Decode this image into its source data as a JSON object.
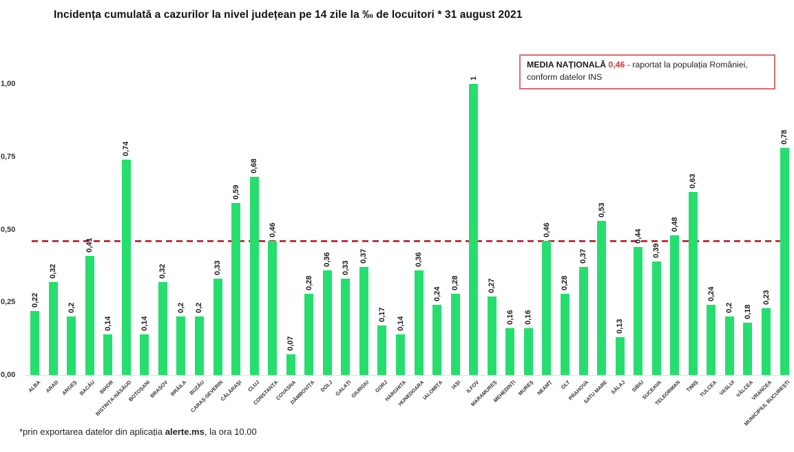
{
  "title": "Incidența cumulată a cazurilor la nivel județean pe 14 zile la ‰ de locuitori * 31 august 2021",
  "legend": {
    "label": "MEDIA NAȚIONALĂ",
    "value": "0,46",
    "text_after": "- raportat la populația României, conform datelor INS"
  },
  "footnote": {
    "prefix": "*prin exportarea datelor din aplicația ",
    "bold": "alerte.ms",
    "suffix": ", la ora 10.00"
  },
  "colors": {
    "bar": "#26de6e",
    "reference_line": "#c2313e",
    "legend_border": "#e06a6a",
    "legend_value": "#d93035",
    "text": "#1a1a1a"
  },
  "chart_data": {
    "type": "bar",
    "title": "Incidența cumulată a cazurilor la nivel județean pe 14 zile la ‰ de locuitori * 31 august 2021",
    "xlabel": "",
    "ylabel": "",
    "ylim": [
      0,
      1.05
    ],
    "grid": false,
    "legend_position": "top-right",
    "yticks": [
      {
        "label": "0,00",
        "value": 0.0
      },
      {
        "label": "0,25",
        "value": 0.25
      },
      {
        "label": "0,50",
        "value": 0.5
      },
      {
        "label": "0,75",
        "value": 0.75
      },
      {
        "label": "1,00",
        "value": 1.0
      }
    ],
    "reference_line": {
      "value": 0.46,
      "style": "dashed",
      "color": "#c2313e",
      "meaning": "media națională"
    },
    "categories": [
      "ALBA",
      "ARAD",
      "ARGEȘ",
      "BACĂU",
      "BIHOR",
      "BISTRIȚA-NĂSĂUD",
      "BOTOȘANI",
      "BRAȘOV",
      "BRĂILA",
      "BUZĂU",
      "CARAȘ-SEVERIN",
      "CĂLĂRAȘI",
      "CLUJ",
      "CONSTANȚA",
      "COVASNA",
      "DÂMBOVIȚA",
      "DOLJ",
      "GALAȚI",
      "GIURGIU",
      "GORJ",
      "HARGHITA",
      "HUNEDOARA",
      "IALOMIȚA",
      "IAȘI",
      "ILFOV",
      "MARAMUREȘ",
      "MEHEDINȚI",
      "MUREȘ",
      "NEAMȚ",
      "OLT",
      "PRAHOVA",
      "SATU MARE",
      "SĂLAJ",
      "SIBIU",
      "SUCEAVA",
      "TELEORMAN",
      "TIMIȘ",
      "TULCEA",
      "VASLUI",
      "VÂLCEA",
      "VRANCEA",
      "MUNICIPIUL BUCUREȘTI"
    ],
    "values": [
      0.22,
      0.32,
      0.2,
      0.41,
      0.14,
      0.74,
      0.14,
      0.32,
      0.2,
      0.2,
      0.33,
      0.59,
      0.68,
      0.46,
      0.07,
      0.28,
      0.36,
      0.33,
      0.37,
      0.17,
      0.14,
      0.36,
      0.24,
      0.28,
      1,
      0.27,
      0.16,
      0.16,
      0.46,
      0.28,
      0.37,
      0.53,
      0.13,
      0.44,
      0.39,
      0.48,
      0.63,
      0.24,
      0.2,
      0.18,
      0.23,
      0.78
    ],
    "value_labels": [
      "0,22",
      "0,32",
      "0,2",
      "0,41",
      "0,14",
      "0,74",
      "0,14",
      "0,32",
      "0,2",
      "0,2",
      "0,33",
      "0,59",
      "0,68",
      "0,46",
      "0,07",
      "0,28",
      "0,36",
      "0,33",
      "0,37",
      "0,17",
      "0,14",
      "0,36",
      "0,24",
      "0,28",
      "1",
      "0,27",
      "0,16",
      "0,16",
      "0,46",
      "0,28",
      "0,37",
      "0,53",
      "0,13",
      "0,44",
      "0,39",
      "0,48",
      "0,63",
      "0,24",
      "0,2",
      "0,18",
      "0,23",
      "0,78"
    ]
  }
}
